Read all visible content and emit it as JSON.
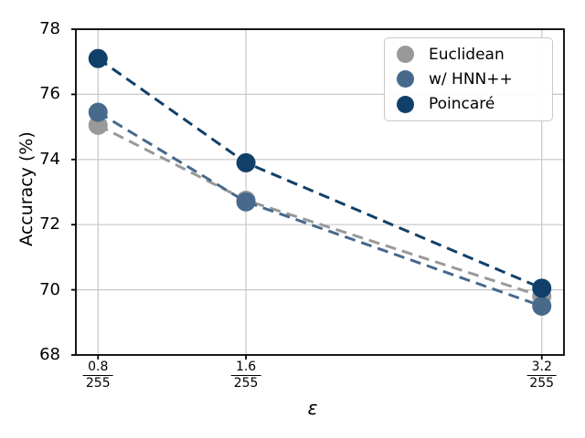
{
  "chart_data": {
    "type": "line",
    "title": "",
    "xlabel": "ε",
    "ylabel": "Accuracy (%)",
    "x": [
      0.8,
      1.6,
      3.2
    ],
    "xtick_labels": [
      {
        "numerator": "0.8",
        "denominator": "255"
      },
      {
        "numerator": "1.6",
        "denominator": "255"
      },
      {
        "numerator": "3.2",
        "denominator": "255"
      }
    ],
    "xlim": [
      0.68,
      3.32
    ],
    "ylim": [
      68,
      78
    ],
    "yticks": [
      68,
      70,
      72,
      74,
      76,
      78
    ],
    "grid": true,
    "legend_position": "upper right",
    "line_style": "dashed",
    "marker": "circle",
    "series": [
      {
        "name": "Euclidean",
        "color": "#999999",
        "values": [
          75.05,
          72.75,
          69.8
        ]
      },
      {
        "name": "w/ HNN++",
        "color": "#46698c",
        "values": [
          75.45,
          72.7,
          69.5
        ]
      },
      {
        "name": "Poincaré",
        "color": "#104069",
        "values": [
          77.1,
          73.9,
          70.05
        ]
      }
    ]
  }
}
